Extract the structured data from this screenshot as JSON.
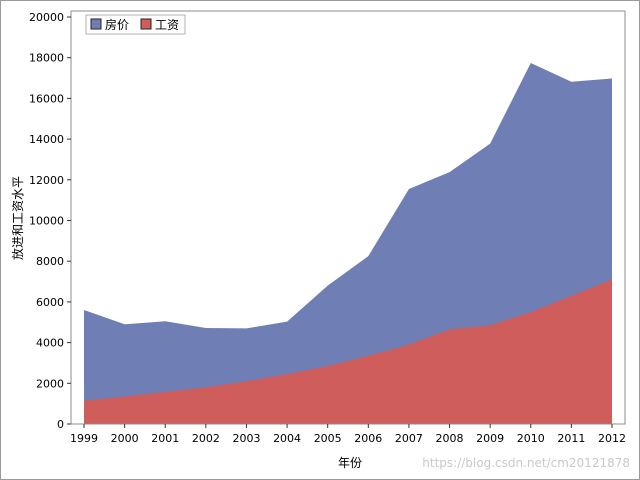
{
  "chart_data": {
    "type": "area",
    "stacked": false,
    "x": [
      1999,
      2000,
      2001,
      2002,
      2003,
      2004,
      2005,
      2006,
      2007,
      2008,
      2009,
      2010,
      2011,
      2012
    ],
    "series": [
      {
        "name": "房价",
        "color": "#6f7fb5",
        "values": [
          5600,
          4900,
          5050,
          4720,
          4700,
          5030,
          6800,
          8250,
          11550,
          12380,
          13780,
          17740,
          16820,
          16980
        ]
      },
      {
        "name": "工资",
        "color": "#cf5d5b",
        "values": [
          1150,
          1350,
          1580,
          1800,
          2100,
          2450,
          2850,
          3350,
          3900,
          4650,
          4850,
          5500,
          6300,
          7100
        ]
      }
    ],
    "xlabel": "年份",
    "ylabel": "放进和工资水平",
    "ylim": [
      0,
      20000
    ],
    "yticks": [
      0,
      2000,
      4000,
      6000,
      8000,
      10000,
      12000,
      14000,
      16000,
      18000,
      20000
    ],
    "legend": "top-left",
    "grid": false
  },
  "watermark": "https://blog.csdn.net/cm20121878"
}
